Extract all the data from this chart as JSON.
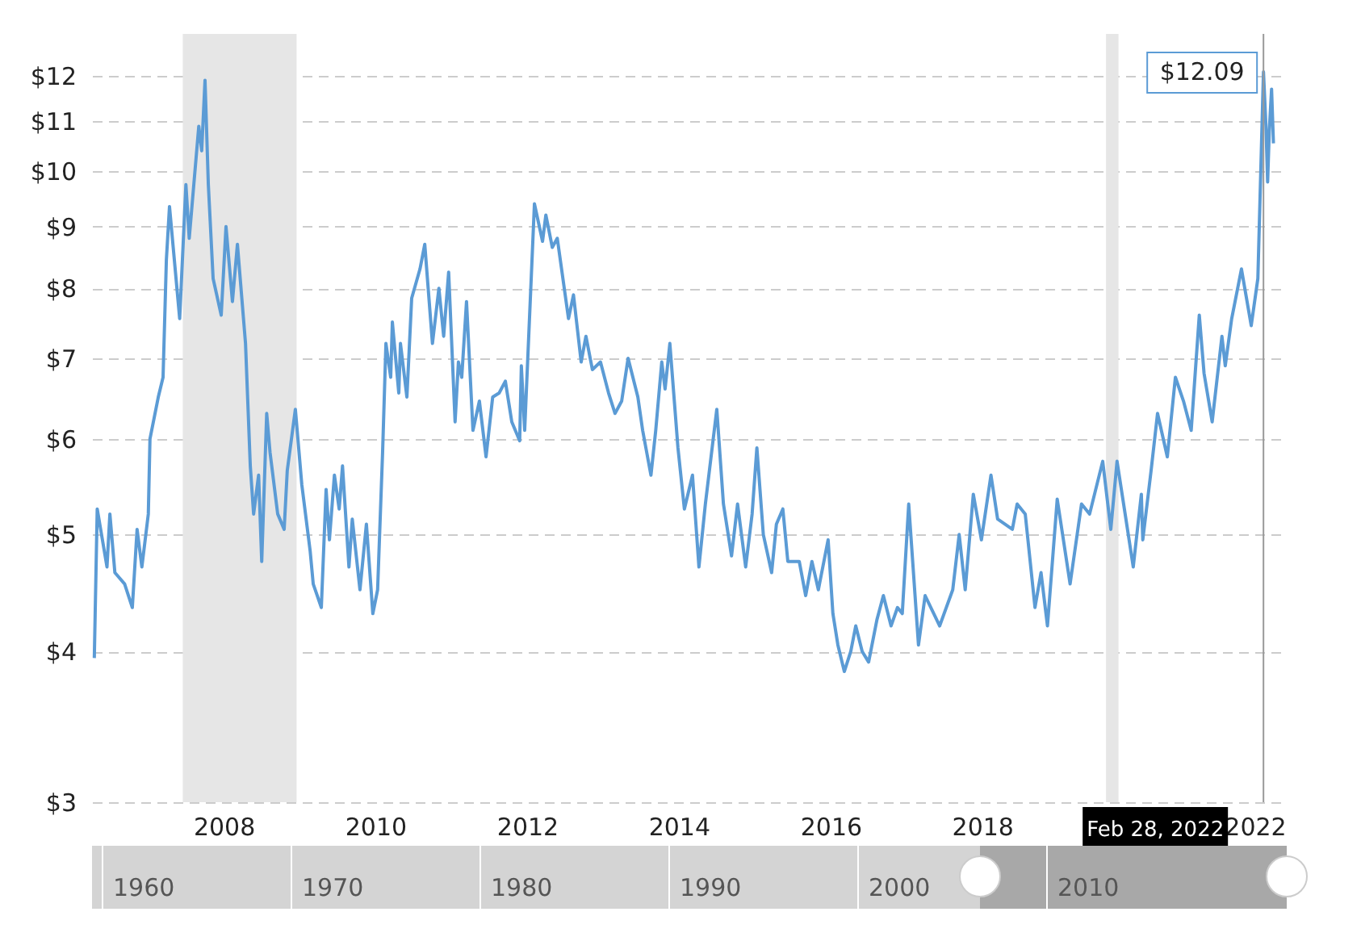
{
  "chart_data": {
    "type": "line",
    "x": [
      "2006-10-01",
      "2006-10-15",
      "2006-12-01",
      "2006-12-15",
      "2007-01-08",
      "2007-02-24",
      "2007-04-02",
      "2007-04-25",
      "2007-05-18",
      "2007-06-18",
      "2007-06-26",
      "2007-08-05",
      "2007-08-28",
      "2007-09-13",
      "2007-09-28",
      "2007-11-16",
      "2007-12-16",
      "2008-01-01",
      "2008-02-16",
      "2008-03-01",
      "2008-03-17",
      "2008-04-02",
      "2008-04-25",
      "2008-06-03",
      "2008-06-26",
      "2008-07-27",
      "2008-08-20",
      "2008-09-28",
      "2008-10-21",
      "2008-11-06",
      "2008-11-30",
      "2008-12-15",
      "2009-01-08",
      "2009-01-24",
      "2009-03-02",
      "2009-04-02",
      "2009-04-17",
      "2009-05-26",
      "2009-06-26",
      "2009-08-05",
      "2009-08-20",
      "2009-09-28",
      "2009-10-21",
      "2009-11-06",
      "2009-11-30",
      "2009-12-23",
      "2010-01-08",
      "2010-02-08",
      "2010-02-24",
      "2010-04-02",
      "2010-05-03",
      "2010-06-03",
      "2010-06-26",
      "2010-07-20",
      "2010-08-05",
      "2010-08-28",
      "2010-09-05",
      "2010-10-06",
      "2010-10-14",
      "2010-11-14",
      "2010-12-07",
      "2011-01-16",
      "2011-02-08",
      "2011-03-17",
      "2011-04-17",
      "2011-05-10",
      "2011-06-03",
      "2011-07-04",
      "2011-07-20",
      "2011-08-05",
      "2011-08-28",
      "2011-09-28",
      "2011-10-29",
      "2011-11-30",
      "2012-01-01",
      "2012-02-01",
      "2012-03-02",
      "2012-04-02",
      "2012-05-10",
      "2012-05-18",
      "2012-06-03",
      "2012-07-20",
      "2012-08-28",
      "2012-09-13",
      "2012-10-14",
      "2012-11-07",
      "2012-12-31",
      "2013-01-24",
      "2013-03-02",
      "2013-03-25",
      "2013-04-25",
      "2013-06-03",
      "2013-07-12",
      "2013-08-12",
      "2013-09-13",
      "2013-10-14",
      "2013-11-30",
      "2013-12-23",
      "2014-02-01",
      "2014-02-24",
      "2014-03-25",
      "2014-04-10",
      "2014-05-03",
      "2014-06-11",
      "2014-07-12",
      "2014-08-20",
      "2014-09-20",
      "2014-10-21",
      "2014-12-15",
      "2015-01-16",
      "2015-02-24",
      "2015-03-25",
      "2015-05-03",
      "2015-06-03",
      "2015-06-26",
      "2015-07-27",
      "2015-09-05",
      "2015-09-28",
      "2015-10-29",
      "2015-11-22",
      "2016-01-16",
      "2016-02-16",
      "2016-03-17",
      "2016-04-17",
      "2016-06-03",
      "2016-06-26",
      "2016-07-20",
      "2016-08-20",
      "2016-09-20",
      "2016-10-14",
      "2016-11-14",
      "2016-12-15",
      "2017-01-24",
      "2017-02-24",
      "2017-04-02",
      "2017-05-03",
      "2017-05-26",
      "2017-06-26",
      "2017-08-12",
      "2017-09-13",
      "2017-11-22",
      "2018-01-24",
      "2018-02-24",
      "2018-03-25",
      "2018-05-03",
      "2018-06-11",
      "2018-07-27",
      "2018-08-28",
      "2018-11-07",
      "2018-11-30",
      "2019-01-08",
      "2019-02-24",
      "2019-03-25",
      "2019-04-25",
      "2019-06-11",
      "2019-08-12",
      "2019-10-06",
      "2019-11-14",
      "2020-01-16",
      "2020-02-24",
      "2020-03-25",
      "2020-05-03",
      "2020-06-11",
      "2020-07-20",
      "2020-07-27",
      "2020-09-05",
      "2020-10-06",
      "2020-11-22",
      "2020-12-31",
      "2021-02-08",
      "2021-03-17",
      "2021-04-25",
      "2021-05-18",
      "2021-06-26",
      "2021-08-12",
      "2021-08-28",
      "2021-09-28",
      "2021-11-14",
      "2021-12-31",
      "2022-02-01",
      "2022-02-28",
      "2022-03-12",
      "2022-03-20",
      "2022-03-28",
      "2022-04-08",
      "2022-04-17"
    ],
    "series": [
      {
        "color": "#5b9bd5",
        "values": [
          3.95,
          5.25,
          4.7,
          5.2,
          4.65,
          4.55,
          4.35,
          5.05,
          4.7,
          5.2,
          6.0,
          6.5,
          6.75,
          8.45,
          9.35,
          7.55,
          9.75,
          8.8,
          10.9,
          10.4,
          11.9,
          9.75,
          8.15,
          7.6,
          9.0,
          7.8,
          8.7,
          7.2,
          5.7,
          5.2,
          5.6,
          4.75,
          6.3,
          5.85,
          5.2,
          5.05,
          5.65,
          6.35,
          5.5,
          4.85,
          4.55,
          4.35,
          5.45,
          4.95,
          5.6,
          5.25,
          5.7,
          4.7,
          5.15,
          4.5,
          5.1,
          4.3,
          4.5,
          5.85,
          7.2,
          6.75,
          7.5,
          6.55,
          7.2,
          6.5,
          7.85,
          8.3,
          8.7,
          7.2,
          8.0,
          7.3,
          8.25,
          6.2,
          6.95,
          6.75,
          7.8,
          6.1,
          6.45,
          5.8,
          6.5,
          6.55,
          6.7,
          6.2,
          5.98,
          6.9,
          6.1,
          9.4,
          8.75,
          9.2,
          8.65,
          8.8,
          7.55,
          7.9,
          6.95,
          7.3,
          6.85,
          6.95,
          6.55,
          6.3,
          6.45,
          7.0,
          6.5,
          6.1,
          5.6,
          6.1,
          6.95,
          6.6,
          7.2,
          5.9,
          5.25,
          5.6,
          4.7,
          5.3,
          6.35,
          5.3,
          4.8,
          5.3,
          4.7,
          5.2,
          5.9,
          5.0,
          4.65,
          5.1,
          5.25,
          4.75,
          4.75,
          4.45,
          4.75,
          4.5,
          4.95,
          4.3,
          4.05,
          3.85,
          4.0,
          4.2,
          4.0,
          3.92,
          4.25,
          4.45,
          4.2,
          4.35,
          4.3,
          5.3,
          4.05,
          4.45,
          4.2,
          4.5,
          5.0,
          4.5,
          5.4,
          4.95,
          5.6,
          5.15,
          5.05,
          5.3,
          5.2,
          4.35,
          4.65,
          4.2,
          5.35,
          4.55,
          5.3,
          5.2,
          5.75,
          5.05,
          5.75,
          5.2,
          4.7,
          5.4,
          4.95,
          5.65,
          6.3,
          5.8,
          6.75,
          6.45,
          6.1,
          7.6,
          6.8,
          6.2,
          7.3,
          6.9,
          7.55,
          8.3,
          7.45,
          8.15,
          12.09,
          10.9,
          9.8,
          10.8,
          11.7,
          10.55
        ]
      }
    ],
    "xlim": [
      "2006-09-20",
      "2022-06-20"
    ],
    "xticks": [
      {
        "value": "2008-06-15",
        "label": "2008"
      },
      {
        "value": "2010-06-15",
        "label": "2010"
      },
      {
        "value": "2012-06-15",
        "label": "2012"
      },
      {
        "value": "2014-06-15",
        "label": "2014"
      },
      {
        "value": "2016-06-15",
        "label": "2016"
      },
      {
        "value": "2018-06-15",
        "label": "2018"
      },
      {
        "value": "2022-06-15",
        "label": "2022"
      }
    ],
    "ylim": [
      3,
      13
    ],
    "yticks": [
      {
        "value": 3,
        "label": "$3"
      },
      {
        "value": 4,
        "label": "$4"
      },
      {
        "value": 5,
        "label": "$5"
      },
      {
        "value": 6,
        "label": "$6"
      },
      {
        "value": 7,
        "label": "$7"
      },
      {
        "value": 8,
        "label": "$8"
      },
      {
        "value": 9,
        "label": "$9"
      },
      {
        "value": 10,
        "label": "$10"
      },
      {
        "value": 11,
        "label": "$11"
      },
      {
        "value": 12,
        "label": "$12"
      }
    ],
    "log": "y",
    "grid": "y",
    "bands": [
      {
        "axis": "x",
        "from": "2007-12-01",
        "to": "2009-06-01",
        "color": "#e6e6e6"
      },
      {
        "axis": "x",
        "from": "2020-02-01",
        "to": "2020-04-01",
        "color": "#e6e6e6"
      }
    ],
    "ref_lines": [
      {
        "axis": "x",
        "value": "2022-02-28",
        "label": "Feb 28, 2022",
        "color": "#999999"
      }
    ],
    "annotations": [
      {
        "text": "$12.09",
        "x": "2022-02-28",
        "y": 12.09
      },
      "1960",
      "1970",
      "1980",
      "1990",
      "2000",
      "2010"
    ]
  }
}
